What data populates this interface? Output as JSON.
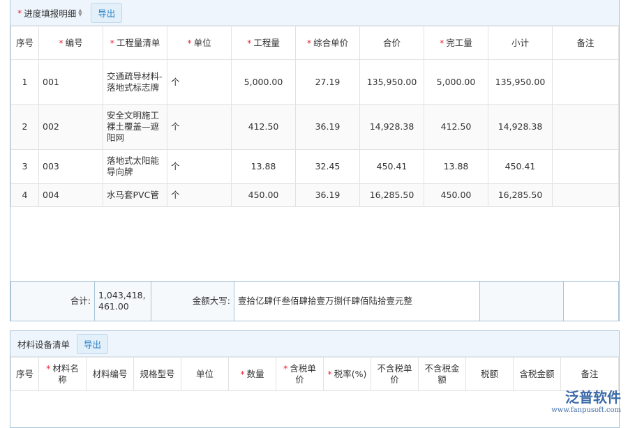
{
  "progress": {
    "title": "进度填报明细",
    "export_label": "导出",
    "columns": [
      {
        "label": "序号",
        "req": false
      },
      {
        "label": "编号",
        "req": true
      },
      {
        "label": "工程量清单",
        "req": true
      },
      {
        "label": "单位",
        "req": true
      },
      {
        "label": "工程量",
        "req": true
      },
      {
        "label": "综合单价",
        "req": true
      },
      {
        "label": "合价",
        "req": false
      },
      {
        "label": "完工量",
        "req": true
      },
      {
        "label": "小计",
        "req": false
      },
      {
        "label": "备注",
        "req": false
      }
    ],
    "rows": [
      [
        "1",
        "001",
        "交通疏导材料-落地式标志牌",
        "个",
        "5,000.00",
        "27.19",
        "135,950.00",
        "5,000.00",
        "135,950.00",
        ""
      ],
      [
        "2",
        "002",
        "安全文明施工裸土覆盖—遮阳网",
        "个",
        "412.50",
        "36.19",
        "14,928.38",
        "412.50",
        "14,928.38",
        ""
      ],
      [
        "3",
        "003",
        "落地式太阳能导向牌",
        "个",
        "13.88",
        "32.45",
        "450.41",
        "13.88",
        "450.41",
        ""
      ],
      [
        "4",
        "004",
        "水马套PVC管",
        "个",
        "450.00",
        "36.19",
        "16,285.50",
        "450.00",
        "16,285.50",
        ""
      ]
    ],
    "total_label": "合计:",
    "total_value": "1,043,418,461.00",
    "amount_words_label": "金额大写:",
    "amount_words": "壹拾亿肆仟叁佰肆拾壹万捌仟肆佰陆拾壹元整"
  },
  "materials": {
    "title": "材料设备清单",
    "export_label": "导出",
    "columns": [
      {
        "label": "序号",
        "req": false
      },
      {
        "label": "材料名称",
        "req": true
      },
      {
        "label": "材料编号",
        "req": false
      },
      {
        "label": "规格型号",
        "req": false
      },
      {
        "label": "单位",
        "req": false
      },
      {
        "label": "数量",
        "req": true
      },
      {
        "label": "含税单价",
        "req": true
      },
      {
        "label": "税率(%)",
        "req": true
      },
      {
        "label": "不含税单价",
        "req": false
      },
      {
        "label": "不含税金额",
        "req": false
      },
      {
        "label": "税额",
        "req": false
      },
      {
        "label": "含税金额",
        "req": false
      },
      {
        "label": "备注",
        "req": false
      }
    ]
  },
  "watermark": {
    "brand": "泛普软件",
    "url": "www.fanpusoft.com"
  }
}
